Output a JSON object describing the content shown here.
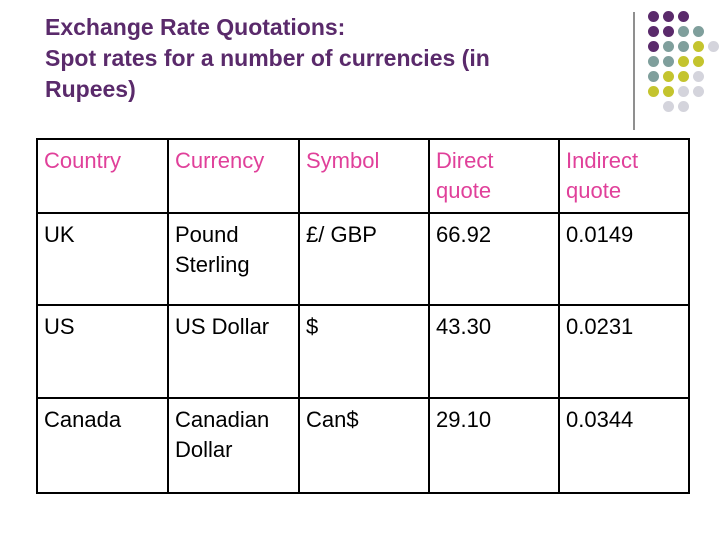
{
  "title": {
    "line1": "Exchange Rate Quotations:",
    "line2": "Spot rates for a number of currencies (in",
    "line3": "Rupees)"
  },
  "colors": {
    "title": "#5a2a6b",
    "header_text": "#e0409a",
    "dot_purple": "#5a2a6b",
    "dot_teal": "#7f9f9c",
    "dot_olive": "#c4c42e",
    "dot_grey": "#d4d4dc"
  },
  "table": {
    "headers": [
      "Country",
      "Currency",
      "Symbol",
      "Direct quote",
      "Indirect quote"
    ],
    "rows": [
      [
        "UK",
        "Pound Sterling",
        "£/ GBP",
        "66.92",
        "0.0149"
      ],
      [
        "US",
        "US Dollar",
        "$",
        "43.30",
        "0.0231"
      ],
      [
        "Canada",
        "Canadian Dollar",
        "Can$",
        "29.10",
        "0.0344"
      ]
    ]
  }
}
